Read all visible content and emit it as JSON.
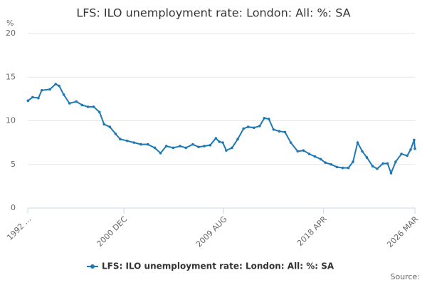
{
  "chart_data": {
    "type": "line",
    "title": "LFS: ILO unemployment rate: London: All: %: SA",
    "y_label": "%",
    "source": "Source:",
    "series": [
      {
        "name": "LFS: ILO unemployment rate: London: All: %: SA",
        "color": "#1f78b4",
        "x": [
          1992.6,
          1993.0,
          1993.5,
          1993.8,
          1994.5,
          1995.0,
          1995.3,
          1995.7,
          1996.2,
          1996.8,
          1997.3,
          1997.8,
          1998.3,
          1998.8,
          1999.2,
          1999.7,
          2000.2,
          2000.6,
          2001.2,
          2001.8,
          2002.4,
          2003.0,
          2003.6,
          2004.1,
          2004.6,
          2005.2,
          2005.8,
          2006.3,
          2006.9,
          2007.4,
          2007.9,
          2008.4,
          2008.9,
          2009.2,
          2009.5,
          2009.8,
          2010.3,
          2010.8,
          2011.3,
          2011.7,
          2012.2,
          2012.7,
          2013.1,
          2013.5,
          2013.9,
          2014.4,
          2014.9,
          2015.4,
          2016.0,
          2016.5,
          2017.0,
          2017.5,
          2018.0,
          2018.4,
          2018.9,
          2019.4,
          2019.9,
          2020.4,
          2020.8,
          2021.2,
          2021.6,
          2022.0,
          2022.5,
          2022.9,
          2023.4,
          2023.8,
          2024.1,
          2024.5,
          2025.0,
          2025.5,
          2025.8,
          2026.1,
          2026.17
        ],
        "values": [
          12.3,
          12.7,
          12.6,
          13.5,
          13.6,
          14.2,
          14.0,
          13.0,
          12.0,
          12.2,
          11.8,
          11.6,
          11.6,
          11.0,
          9.6,
          9.3,
          8.5,
          7.9,
          7.7,
          7.5,
          7.3,
          7.3,
          6.9,
          6.3,
          7.1,
          6.9,
          7.1,
          6.9,
          7.3,
          7.0,
          7.1,
          7.2,
          8.0,
          7.6,
          7.5,
          6.6,
          6.9,
          7.9,
          9.1,
          9.3,
          9.2,
          9.4,
          10.3,
          10.2,
          9.0,
          8.8,
          8.7,
          7.5,
          6.5,
          6.6,
          6.2,
          5.9,
          5.6,
          5.2,
          5.0,
          4.7,
          4.6,
          4.6,
          5.3,
          7.5,
          6.5,
          5.8,
          4.8,
          4.5,
          5.1,
          5.1,
          4.0,
          5.3,
          6.2,
          6.0,
          6.7,
          7.8,
          6.8
        ]
      }
    ],
    "xlim": [
      1992.58,
      2026.17
    ],
    "xticks": [
      {
        "value": 1992.58,
        "label": "1992 ..."
      },
      {
        "value": 2000.92,
        "label": "2000 DEC"
      },
      {
        "value": 2009.58,
        "label": "2009 AUG"
      },
      {
        "value": 2018.25,
        "label": "2018 APR"
      },
      {
        "value": 2026.17,
        "label": "2026 MAR"
      }
    ],
    "ylim": [
      0,
      20
    ],
    "yticks": [
      0,
      5,
      10,
      15,
      20
    ],
    "grid": true,
    "legend": "bottom"
  }
}
